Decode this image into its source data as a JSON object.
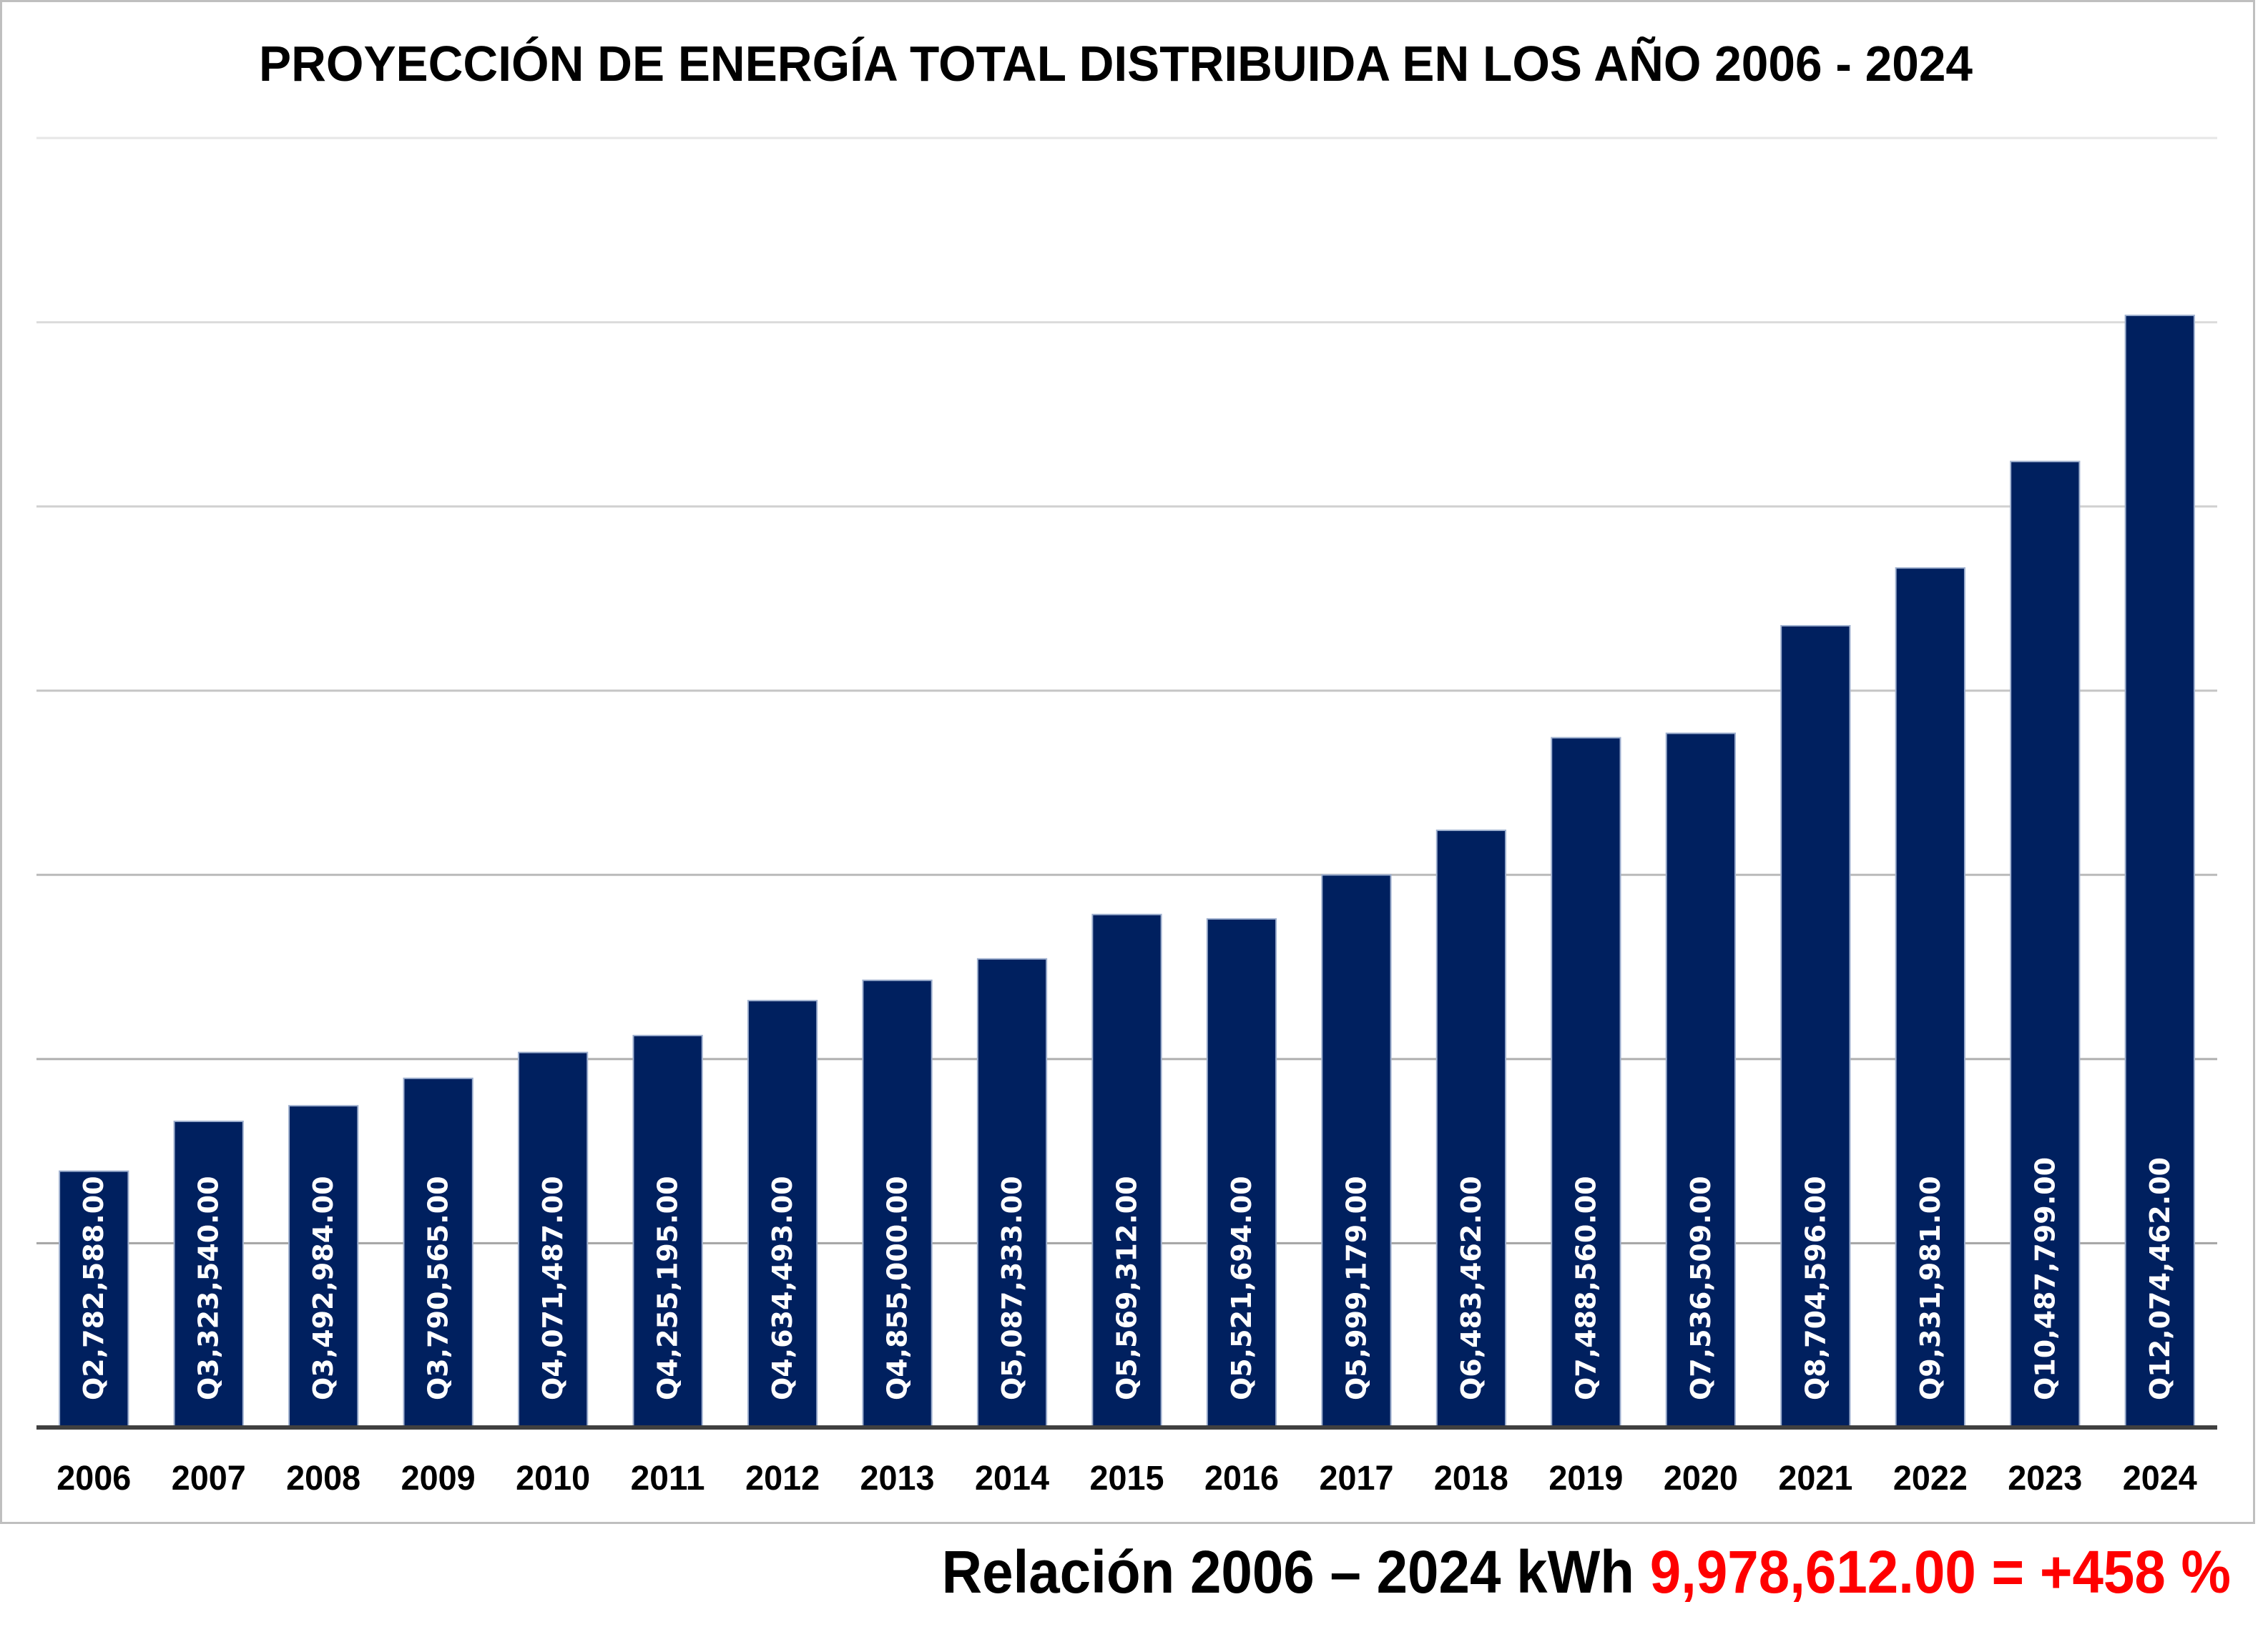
{
  "chart_data": {
    "type": "bar",
    "title": "PROYECCIÓN DE ENERGÍA TOTAL DISTRIBUIDA EN LOS AÑO 2006 - 2024",
    "xlabel": "",
    "ylabel": "",
    "categories": [
      "2006",
      "2007",
      "2008",
      "2009",
      "2010",
      "2011",
      "2012",
      "2013",
      "2014",
      "2015",
      "2016",
      "2017",
      "2018",
      "2019",
      "2020",
      "2021",
      "2022",
      "2023",
      "2024"
    ],
    "values": [
      2782588,
      3323540,
      3492984,
      3790565,
      4071487,
      4255195,
      4634493,
      4855000,
      5087333,
      5569312,
      5521694,
      5999179,
      6483462,
      7488560,
      7536509,
      8704596,
      9331981,
      10487799,
      12074462
    ],
    "data_labels": [
      "Q2,782,588.00",
      "Q3,323,540.00",
      "Q3,492,984.00",
      "Q3,790,565.00",
      "Q4,071,487.00",
      "Q4,255,195.00",
      "Q4,634,493.00",
      "Q4,855,000.00",
      "Q5,087,333.00",
      "Q5,569,312.00",
      "Q5,521,694.00",
      "Q5,999,179.00",
      "Q6,483,462.00",
      "Q7,488,560.00",
      "Q7,536,509.00",
      "Q8,704,596.00",
      "Q9,331,981.00",
      "Q10,487,799.00",
      "Q12,074,462.00"
    ],
    "ylim": [
      0,
      14000000
    ],
    "y_gridlines": [
      2000000,
      4000000,
      6000000,
      8000000,
      10000000,
      12000000,
      14000000
    ],
    "y_tick_labels_shown": false,
    "grid": true,
    "legend": "none",
    "bar_color": "#00205f",
    "bar_edge_color": "#9fb0cf",
    "data_label_color": "#ffffff"
  },
  "footer": {
    "prefix": "Relación 2006 – 2024 kWh ",
    "highlight": "9,978,612.00 = +458 %",
    "prefix_color": "#000000",
    "highlight_color": "#ff0000"
  }
}
